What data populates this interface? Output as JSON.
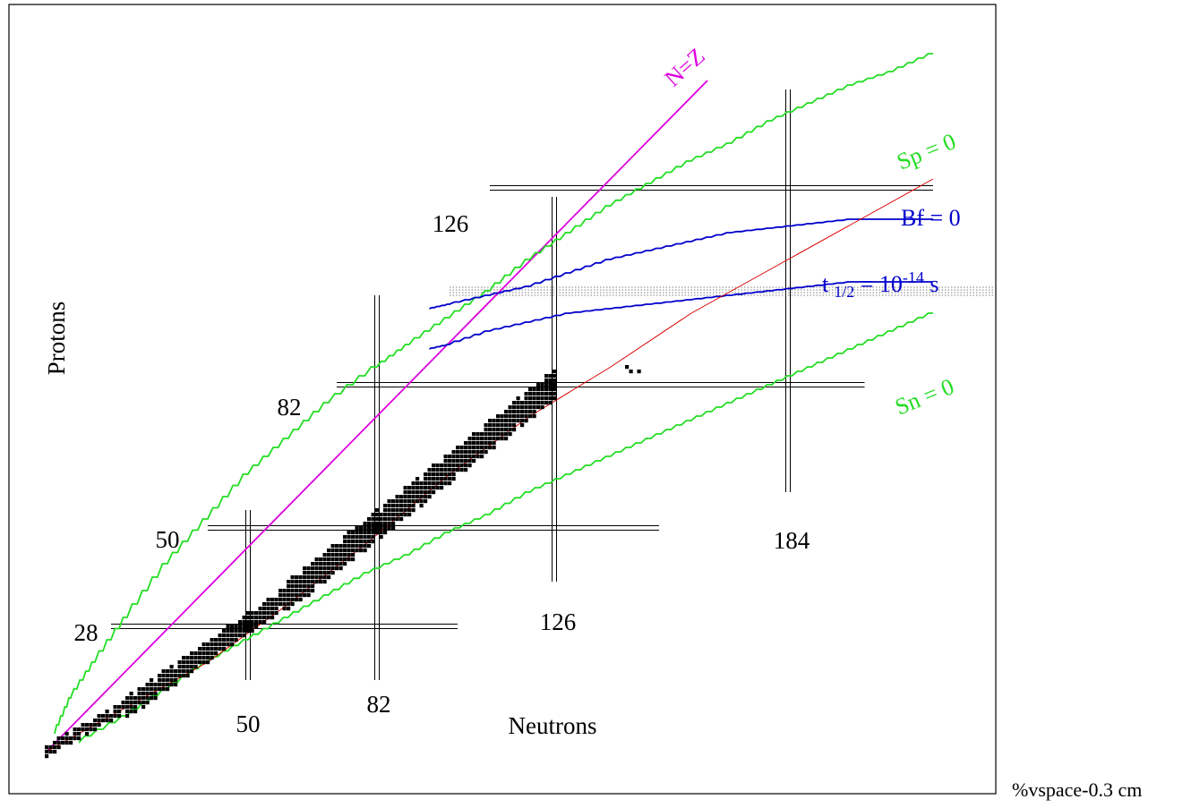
{
  "chart_data": {
    "type": "scatter",
    "xlabel": "Neutrons",
    "ylabel": "Protons",
    "xlim": [
      0,
      215
    ],
    "ylim": [
      0,
      150
    ],
    "grid": false,
    "magic_numbers": {
      "neutron": [
        {
          "n": 50,
          "label": "50",
          "zmin": 16,
          "zmax": 54
        },
        {
          "n": 82,
          "label": "82",
          "zmin": 16,
          "zmax": 102
        },
        {
          "n": 126,
          "label": "126",
          "zmin": 38,
          "zmax": 124
        },
        {
          "n": 184,
          "label": "184",
          "zmin": 58,
          "zmax": 148
        }
      ],
      "proton": [
        {
          "z": 126,
          "label": "126",
          "nmin": 110,
          "nmax": 220
        },
        {
          "z": 82,
          "label": "82",
          "nmin": 72,
          "nmax": 203
        },
        {
          "z": 50,
          "label": "50",
          "nmin": 40,
          "nmax": 152
        },
        {
          "z": 28,
          "label": "28",
          "nmin": 16,
          "nmax": 102
        }
      ]
    },
    "curves": [
      {
        "name": "N=Z",
        "color": "#dd00dd",
        "points": [
          [
            0,
            0
          ],
          [
            164,
            150
          ]
        ]
      },
      {
        "name": "Sp = 0",
        "color": "#22dd22",
        "points": [
          [
            2,
            4
          ],
          [
            6,
            12
          ],
          [
            12,
            20
          ],
          [
            20,
            30
          ],
          [
            30,
            42
          ],
          [
            40,
            52
          ],
          [
            50,
            62
          ],
          [
            60,
            70
          ],
          [
            70,
            78
          ],
          [
            82,
            86
          ],
          [
            90,
            91
          ],
          [
            100,
            97
          ],
          [
            110,
            103
          ],
          [
            120,
            110
          ],
          [
            130,
            116
          ],
          [
            140,
            122
          ],
          [
            150,
            127
          ],
          [
            160,
            132
          ],
          [
            170,
            136
          ],
          [
            180,
            141
          ],
          [
            190,
            145
          ],
          [
            200,
            149
          ],
          [
            210,
            152
          ],
          [
            220,
            156
          ]
        ]
      },
      {
        "name": "Sn = 0",
        "color": "#22dd22",
        "points": [
          [
            8,
            2
          ],
          [
            20,
            8
          ],
          [
            30,
            14
          ],
          [
            40,
            20
          ],
          [
            50,
            25
          ],
          [
            60,
            30
          ],
          [
            70,
            35
          ],
          [
            80,
            40
          ],
          [
            90,
            44
          ],
          [
            100,
            49
          ],
          [
            110,
            53
          ],
          [
            120,
            58
          ],
          [
            130,
            62
          ],
          [
            140,
            66
          ],
          [
            150,
            70
          ],
          [
            160,
            74
          ],
          [
            170,
            78
          ],
          [
            180,
            82
          ],
          [
            190,
            86
          ],
          [
            200,
            90
          ],
          [
            210,
            94
          ],
          [
            220,
            98
          ]
        ]
      },
      {
        "name": "Bf = 0 (upper)",
        "color": "#0000cc",
        "points": [
          [
            95,
            99
          ],
          [
            100,
            100
          ],
          [
            110,
            102
          ],
          [
            120,
            104
          ],
          [
            130,
            107
          ],
          [
            140,
            110
          ],
          [
            150,
            112
          ],
          [
            160,
            114
          ],
          [
            170,
            116
          ],
          [
            180,
            117
          ],
          [
            190,
            118
          ],
          [
            200,
            119
          ],
          [
            210,
            119
          ],
          [
            220,
            119
          ]
        ]
      },
      {
        "name": "Bf = 0 (lower)",
        "color": "#0000cc",
        "points": [
          [
            95,
            90
          ],
          [
            100,
            91
          ],
          [
            110,
            94
          ],
          [
            120,
            96
          ],
          [
            130,
            98
          ],
          [
            140,
            99
          ],
          [
            150,
            100
          ],
          [
            160,
            101
          ],
          [
            170,
            102
          ],
          [
            180,
            103
          ],
          [
            190,
            104
          ],
          [
            200,
            105
          ],
          [
            210,
            105
          ],
          [
            220,
            105
          ]
        ]
      },
      {
        "name": "t 1/2 = 10^-14 s",
        "color": "#dd0000",
        "points": [
          [
            0,
            0
          ],
          [
            20,
            10
          ],
          [
            40,
            20
          ],
          [
            60,
            33
          ],
          [
            80,
            47
          ],
          [
            100,
            62
          ],
          [
            120,
            75
          ],
          [
            140,
            86
          ],
          [
            160,
            98
          ],
          [
            180,
            108
          ],
          [
            200,
            118
          ],
          [
            220,
            128
          ]
        ]
      }
    ],
    "annotations": [
      {
        "text": "N=Z",
        "color": "#dd00dd"
      },
      {
        "text": "Sp = 0",
        "color": "#22dd22"
      },
      {
        "text": "Bf = 0",
        "color": "#0000cc"
      },
      {
        "text": "t",
        "sub": "1/2",
        "eq": " = 10",
        "sup": "-14",
        "unit": " s",
        "color": "#0000cc"
      },
      {
        "text": "Sn = 0",
        "color": "#22dd22"
      }
    ],
    "bands": [
      {
        "zmin": 102,
        "zmax": 104,
        "style": "dotted"
      }
    ],
    "stable_nuclei_note": "black squares along the valley of stability from (2,1) to (126,82)"
  },
  "footer_text": "%vspace-0.3 cm"
}
